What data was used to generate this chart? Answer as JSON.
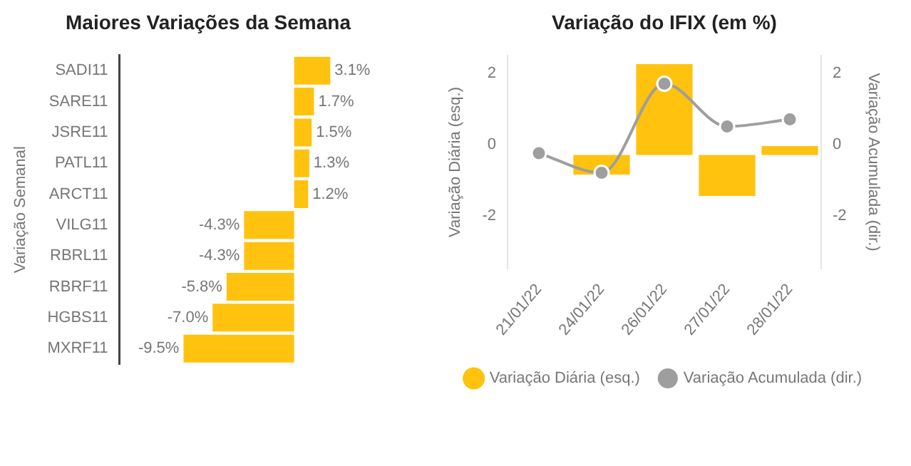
{
  "chart_data": [
    {
      "type": "bar",
      "orientation": "horizontal",
      "title": "Maiores Variações da Semana",
      "ylabel": "Variação Semanal",
      "categories": [
        "SADI11",
        "SARE11",
        "JSRE11",
        "PATL11",
        "ARCT11",
        "VILG11",
        "RBRL11",
        "RBRF11",
        "HGBS11",
        "MXRF11"
      ],
      "values": [
        3.1,
        1.7,
        1.5,
        1.3,
        1.2,
        -4.3,
        -4.3,
        -5.8,
        -7.0,
        -9.5
      ],
      "value_labels": [
        "3.1%",
        "1.7%",
        "1.5%",
        "1.3%",
        "1.2%",
        "-4.3%",
        "-4.3%",
        "-5.8%",
        "-7.0%",
        "-9.5%"
      ],
      "color": "#ffc20e",
      "tick_labels": "y",
      "grid": false,
      "legend": false
    },
    {
      "type": "bar",
      "title": "Variação do IFIX (em %)",
      "ylabel": "Variação Diária (esq.)",
      "y2label": "Variação Acumulada (dir.)",
      "categories": [
        "21/01/22",
        "24/01/22",
        "26/01/22",
        "27/01/22",
        "28/01/22"
      ],
      "series": [
        {
          "name": "Variação Diária (esq.)",
          "color": "#ffc20e",
          "values": [
            null,
            -0.55,
            2.55,
            -1.15,
            0.25
          ],
          "base": [
            null,
            -0.3,
            -0.3,
            -0.3,
            -0.3
          ]
        },
        {
          "name": "Variação Acumulada (dir.)",
          "type": "line",
          "axis": "y2",
          "color": "#9e9e9e",
          "marker": "circle",
          "values": [
            -0.25,
            -0.8,
            1.7,
            0.5,
            0.7
          ]
        }
      ],
      "ylim": [
        -3.5,
        2.5
      ],
      "yticks": [
        -2,
        0,
        2
      ],
      "y2lim": [
        -3.5,
        2.5
      ],
      "y2ticks": [
        -2,
        0,
        2
      ],
      "grid": false,
      "legend": "bottom"
    }
  ]
}
